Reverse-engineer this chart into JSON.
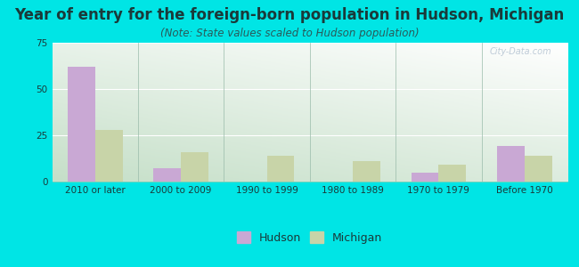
{
  "title": "Year of entry for the foreign-born population in Hudson, Michigan",
  "subtitle": "(Note: State values scaled to Hudson population)",
  "categories": [
    "2010 or later",
    "2000 to 2009",
    "1990 to 1999",
    "1980 to 1989",
    "1970 to 1979",
    "Before 1970"
  ],
  "hudson_values": [
    62,
    7,
    0,
    0,
    5,
    19
  ],
  "michigan_values": [
    28,
    16,
    14,
    11,
    9,
    14
  ],
  "hudson_color": "#c9a8d4",
  "michigan_color": "#c8d4a8",
  "figure_bg": "#00e5e5",
  "plot_bg_topleft": "#e8f5ee",
  "plot_bg_topright": "#ffffff",
  "plot_bg_bottomleft": "#c8e8d0",
  "plot_bg_bottomright": "#e8f5ee",
  "ylim": [
    0,
    75
  ],
  "yticks": [
    0,
    25,
    50,
    75
  ],
  "bar_width": 0.32,
  "title_fontsize": 12,
  "subtitle_fontsize": 8.5,
  "tick_fontsize": 7.5,
  "legend_fontsize": 9,
  "title_color": "#1a3a3a",
  "subtitle_color": "#2a5a5a",
  "tick_color": "#1a3a3a",
  "watermark": "City-Data.com"
}
